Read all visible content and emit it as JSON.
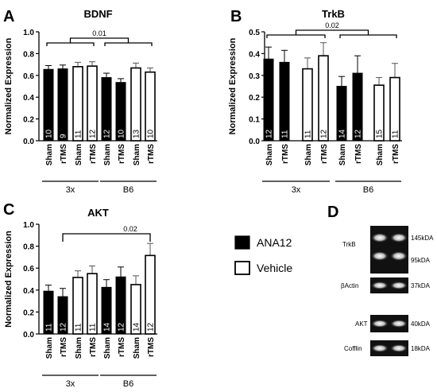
{
  "figure": {
    "y_axis_label": "Normalized  Expression",
    "legend": [
      {
        "name": "ANA12",
        "fill": "#000000"
      },
      {
        "name": "Vehicle",
        "fill": "#ffffff"
      }
    ]
  },
  "chart_data": [
    {
      "panel": "A",
      "type": "bar",
      "title": "BDNF",
      "ylabel": "Normalized  Expression",
      "ylim": [
        0,
        1.0
      ],
      "yticks": [
        "0.0",
        "0.2",
        "0.4",
        "0.6",
        "0.8",
        "1.0"
      ],
      "categories": [
        "Sham",
        "rTMS",
        "Sham",
        "rTMS",
        "Sham",
        "rTMS",
        "Sham",
        "rTMS"
      ],
      "groups": [
        "3x",
        "B6"
      ],
      "values": [
        0.655,
        0.66,
        0.68,
        0.685,
        0.58,
        0.535,
        0.668,
        0.63
      ],
      "errors": [
        0.035,
        0.035,
        0.04,
        0.04,
        0.04,
        0.035,
        0.045,
        0.038
      ],
      "n": [
        "10",
        "9",
        "11",
        "12",
        "12",
        "10",
        "13",
        "10"
      ],
      "treatment": [
        "ANA12",
        "ANA12",
        "Vehicle",
        "Vehicle",
        "ANA12",
        "ANA12",
        "Vehicle",
        "Vehicle"
      ],
      "significance": {
        "text": "0.01",
        "from": "3x",
        "to": "B6"
      }
    },
    {
      "panel": "B",
      "type": "bar",
      "title": "TrkB",
      "ylabel": "Normalized  Expression",
      "ylim": [
        0,
        0.5
      ],
      "yticks": [
        "0.0",
        "0.1",
        "0.2",
        "0.3",
        "0.4",
        "0.5"
      ],
      "categories": [
        "Sham",
        "rTMS",
        "Sham",
        "rTMS",
        "Sham",
        "rTMS",
        "Sham",
        "rTMS"
      ],
      "groups": [
        "3x",
        "B6"
      ],
      "values": [
        0.375,
        0.36,
        0.33,
        0.39,
        0.25,
        0.31,
        0.255,
        0.29
      ],
      "errors": [
        0.055,
        0.055,
        0.05,
        0.06,
        0.045,
        0.08,
        0.035,
        0.065
      ],
      "n": [
        "12",
        "11",
        "11",
        "12",
        "14",
        "12",
        "15",
        "11"
      ],
      "treatment": [
        "ANA12",
        "ANA12",
        "Vehicle",
        "Vehicle",
        "ANA12",
        "ANA12",
        "Vehicle",
        "Vehicle"
      ],
      "significance": {
        "text": "0.02",
        "from": "3x",
        "to": "B6"
      }
    },
    {
      "panel": "C",
      "type": "bar",
      "title": "AKT",
      "ylabel": "Normalized  Expression",
      "ylim": [
        0,
        1.0
      ],
      "yticks": [
        "0.0",
        "0.2",
        "0.4",
        "0.6",
        "0.8",
        "1.0"
      ],
      "categories": [
        "Sham",
        "rTMS",
        "Sham",
        "rTMS",
        "Sham",
        "rTMS",
        "Sham",
        "rTMS"
      ],
      "groups": [
        "3x",
        "B6"
      ],
      "values": [
        0.39,
        0.34,
        0.515,
        0.55,
        0.425,
        0.52,
        0.45,
        0.715
      ],
      "errors": [
        0.055,
        0.075,
        0.06,
        0.07,
        0.07,
        0.09,
        0.08,
        0.11
      ],
      "n": [
        "11",
        "12",
        "11",
        "11",
        "14",
        "12",
        "14",
        "12"
      ],
      "treatment": [
        "ANA12",
        "ANA12",
        "Vehicle",
        "Vehicle",
        "ANA12",
        "ANA12",
        "Vehicle",
        "Vehicle"
      ],
      "significance": {
        "text": "0.02",
        "from": "rTMS-3x-ANA12",
        "to": "rTMS-B6-Vehicle"
      }
    }
  ],
  "blots": {
    "panel": "D",
    "rows": [
      {
        "label": "TrkB",
        "bands": "two",
        "sizes": [
          "145kDA",
          "95kDA"
        ]
      },
      {
        "label": "βActin",
        "bands": "one",
        "sizes": [
          "37kDA"
        ]
      },
      {
        "label": "AKT",
        "bands": "one",
        "sizes": [
          "40kDA"
        ]
      },
      {
        "label": "Cofflin",
        "bands": "one",
        "sizes": [
          "18kDA"
        ]
      }
    ]
  }
}
